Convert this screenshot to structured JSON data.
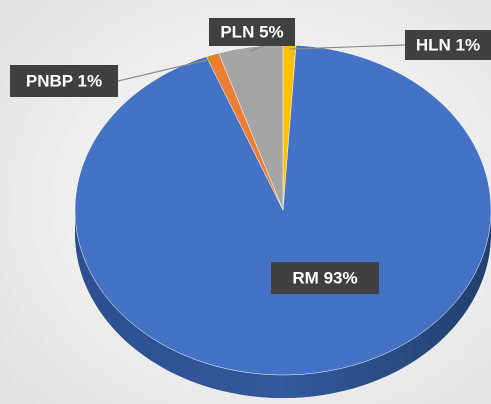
{
  "chart_data": {
    "type": "pie",
    "values": [
      1,
      93,
      1,
      5
    ],
    "value_labels": [
      "HLN 1%",
      "RM 93%",
      "PNBP 1%",
      "PLN 5%"
    ],
    "colors": [
      "#ffc000",
      "#4472c4",
      "#ed7d31",
      "#a5a5a5"
    ]
  }
}
